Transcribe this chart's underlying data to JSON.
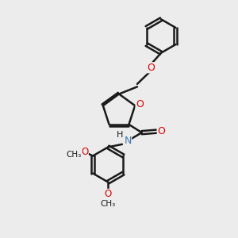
{
  "background_color": "#ececec",
  "bond_color": "#1a1a1a",
  "oxygen_color": "#dd0000",
  "nitrogen_color": "#4477aa",
  "bond_width": 1.8,
  "figsize": [
    3.0,
    3.0
  ],
  "dpi": 100,
  "xlim": [
    0,
    10
  ],
  "ylim": [
    0,
    10
  ]
}
